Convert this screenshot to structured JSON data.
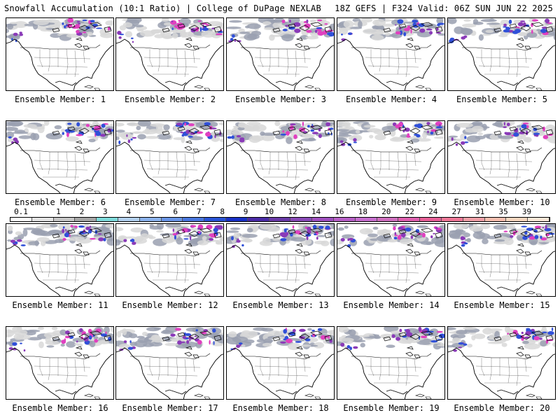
{
  "header": {
    "left": "Snowfall Accumulation (10:1 Ratio) | College of DuPage NEXLAB",
    "right": "18Z GEFS | F324 Valid: 06Z SUN JUN 22 2025"
  },
  "members": [
    "Ensemble Member: 1",
    "Ensemble Member: 2",
    "Ensemble Member: 3",
    "Ensemble Member: 4",
    "Ensemble Member: 5",
    "Ensemble Member: 6",
    "Ensemble Member: 7",
    "Ensemble Member: 8",
    "Ensemble Member: 9",
    "Ensemble Member: 10",
    "Ensemble Member: 11",
    "Ensemble Member: 12",
    "Ensemble Member: 13",
    "Ensemble Member: 14",
    "Ensemble Member: 15",
    "Ensemble Member: 16",
    "Ensemble Member: 17",
    "Ensemble Member: 18",
    "Ensemble Member: 19",
    "Ensemble Member: 20"
  ],
  "color_scale": {
    "labels": [
      "0.1",
      "1",
      "2",
      "3",
      "4",
      "5",
      "6",
      "7",
      "8",
      "9",
      "10",
      "12",
      "14",
      "16",
      "18",
      "20",
      "22",
      "24",
      "27",
      "31",
      "35",
      "39"
    ],
    "colors": [
      "#ffffff",
      "#e6e6e6",
      "#c8c8c8",
      "#a8a8a8",
      "#7fdcdc",
      "#b4d2f0",
      "#8cb4ee",
      "#6a96e8",
      "#4a78e0",
      "#2a55d8",
      "#1a32c8",
      "#4b2ca8",
      "#6a3aa8",
      "#8a4ab8",
      "#a050c0",
      "#b860c8",
      "#c870d0",
      "#d070c0",
      "#e060b0",
      "#e86098",
      "#f07898",
      "#f0a0a8",
      "#f8c0b0",
      "#f8d8c0",
      "#fce8d8"
    ]
  },
  "map_colors": {
    "snow_light": "#d8d8d8",
    "snow_mid": "#9aa0b0",
    "snow_blue": "#3050d8",
    "snow_purple": "#8a3ab8",
    "snow_magenta": "#e040c0"
  }
}
